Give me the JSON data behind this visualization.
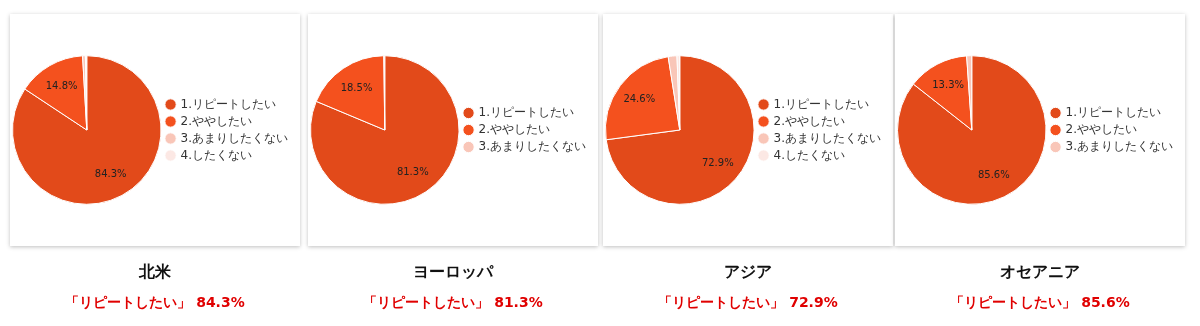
{
  "chart_data": [
    {
      "type": "pie",
      "title": "北米",
      "subtitle": "「リピートしたい」 84.3%",
      "categories": [
        "1.リピートしたい",
        "2.ややしたい",
        "3.あまりしたくない",
        "4.したくない"
      ],
      "values": [
        84.3,
        14.8,
        0.6,
        0.3
      ],
      "colors": [
        "#e24a1a",
        "#f4511e",
        "#f9c6b8",
        "#fce8e4"
      ],
      "value_labels": [
        "84.3%",
        "14.8%",
        null,
        null
      ],
      "legend": "right"
    },
    {
      "type": "pie",
      "title": "ヨーロッパ",
      "subtitle": "「リピートしたい」 81.3%",
      "categories": [
        "1.リピートしたい",
        "2.ややしたい",
        "3.あまりしたくない"
      ],
      "values": [
        81.3,
        18.5,
        0.2
      ],
      "colors": [
        "#e24a1a",
        "#f4511e",
        "#f9c6b8"
      ],
      "value_labels": [
        "81.3%",
        "18.5%",
        null
      ],
      "legend": "right"
    },
    {
      "type": "pie",
      "title": "アジア",
      "subtitle": "「リピートしたい」 72.9%",
      "categories": [
        "1.リピートしたい",
        "2.ややしたい",
        "3.あまりしたくない",
        "4.したくない"
      ],
      "values": [
        72.9,
        24.6,
        1.9,
        0.6
      ],
      "colors": [
        "#e24a1a",
        "#f4511e",
        "#f9c6b8",
        "#fce8e4"
      ],
      "value_labels": [
        "72.9%",
        "24.6%",
        null,
        null
      ],
      "legend": "right"
    },
    {
      "type": "pie",
      "title": "オセアニア",
      "subtitle": "「リピートしたい」 85.6%",
      "categories": [
        "1.リピートしたい",
        "2.ややしたい",
        "3.あまりしたくない"
      ],
      "values": [
        85.6,
        13.3,
        1.1
      ],
      "colors": [
        "#e24a1a",
        "#f4511e",
        "#f9c6b8"
      ],
      "value_labels": [
        "85.6%",
        "13.3%",
        null
      ],
      "legend": "right"
    }
  ]
}
